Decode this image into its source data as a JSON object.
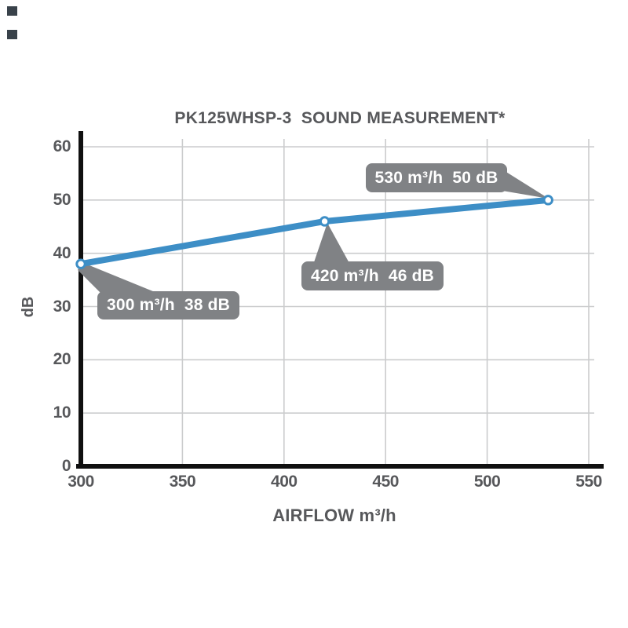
{
  "page": {
    "background": "#ffffff",
    "decor_square_color": "#39424a"
  },
  "chart_data": {
    "type": "line",
    "title": "PK125WHSP-3  SOUND MEASUREMENT*",
    "xlabel": "AIRFLOW m³/h",
    "ylabel": "dB",
    "x": [
      300,
      420,
      530
    ],
    "y": [
      38,
      46,
      50
    ],
    "xlim": [
      300,
      550
    ],
    "ylim": [
      0,
      60
    ],
    "xticks": [
      "300",
      "350",
      "400",
      "450",
      "500",
      "550"
    ],
    "yticks": [
      "0",
      "10",
      "20",
      "30",
      "40",
      "50",
      "60"
    ],
    "grid": true,
    "legend": false,
    "line_color": "#3d8ec6",
    "marker_style": "white circle with blue ring",
    "grid_color": "#cbcccd",
    "axis_color": "#101010",
    "text_color": "#57585b",
    "annotation_bg": "#808285",
    "annotation_text_color": "#ffffff",
    "annotations": [
      {
        "x": 300,
        "y": 38,
        "label": "300 m³/h  38 dB"
      },
      {
        "x": 420,
        "y": 46,
        "label": "420 m³/h  46 dB"
      },
      {
        "x": 530,
        "y": 50,
        "label": "530 m³/h  50 dB"
      }
    ]
  }
}
